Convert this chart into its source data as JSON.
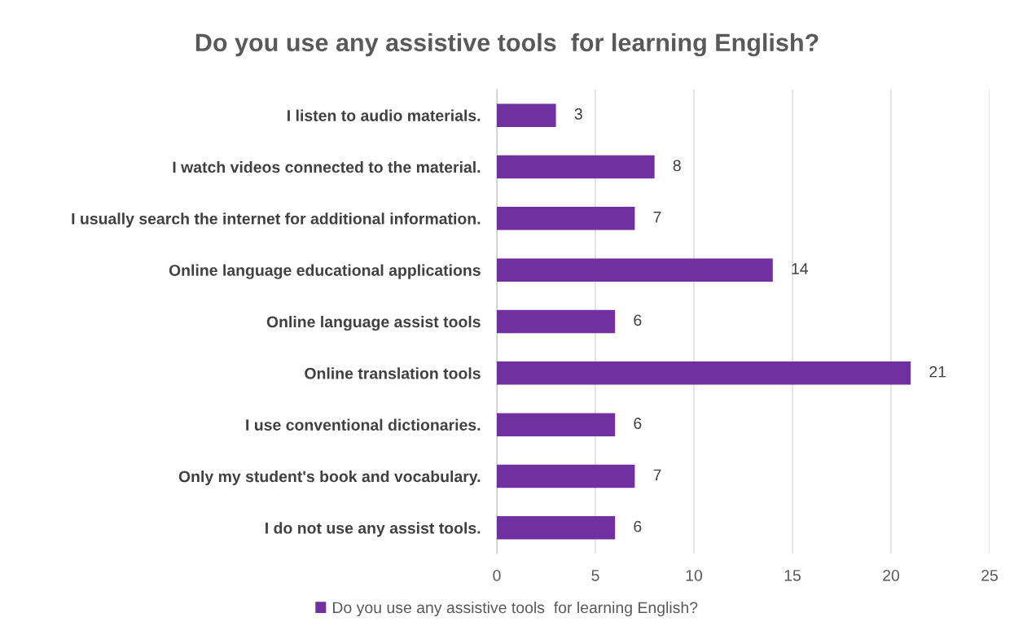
{
  "chart_data": {
    "type": "bar",
    "orientation": "horizontal",
    "title": "Do you use any assistive tools  for learning English?",
    "categories": [
      "I listen to audio materials.",
      "I watch videos connected to the material.",
      "I usually search the internet for additional information.",
      "Online language educational applications",
      "Online language assist tools",
      "Online translation tools",
      "I use conventional dictionaries.",
      "Only my student's book and vocabulary.",
      "I do not use any assist tools."
    ],
    "series": [
      {
        "name": "Do you use any assistive tools  for learning English?",
        "color": "#7030a0",
        "values": [
          3,
          8,
          7,
          14,
          6,
          21,
          6,
          7,
          6
        ]
      }
    ],
    "xlim": [
      0,
      25
    ],
    "xticks": [
      0,
      5,
      10,
      15,
      20,
      25
    ],
    "grid": "x",
    "legend": "bottom",
    "data_labels": true
  }
}
